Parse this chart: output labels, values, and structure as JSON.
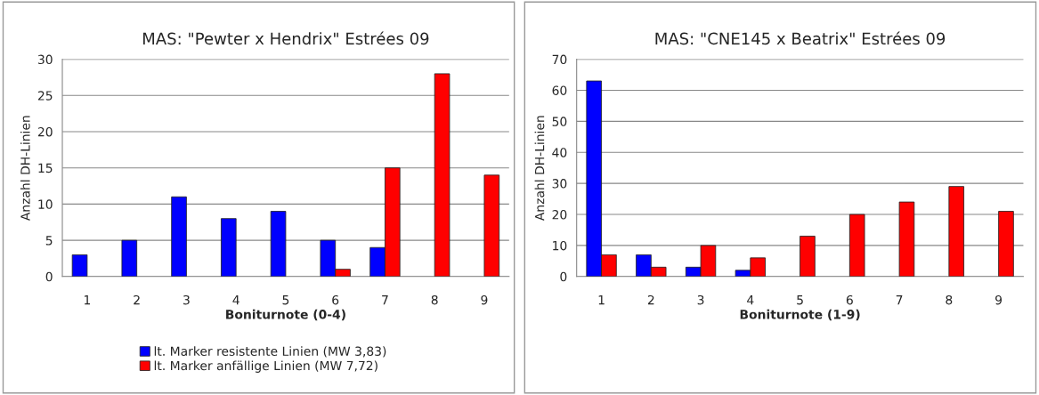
{
  "chart_data": [
    {
      "type": "bar",
      "title": "MAS: \"Pewter x Hendrix\" Estrées 09",
      "xlabel": "Boniturnote (0-4)",
      "ylabel": "Anzahl DH-Linien",
      "categories": [
        "1",
        "2",
        "3",
        "4",
        "5",
        "6",
        "7",
        "8",
        "9"
      ],
      "series": [
        {
          "name": "lt. Marker resistente Linien (MW 3,83)",
          "color": "#0000ff",
          "values": [
            3,
            5,
            11,
            8,
            9,
            5,
            4,
            null,
            null
          ]
        },
        {
          "name": "lt. Marker anfällige Linien (MW 7,72)",
          "color": "#ff0000",
          "values": [
            null,
            null,
            null,
            null,
            null,
            1,
            15,
            28,
            14
          ]
        }
      ],
      "ylim": [
        0,
        30
      ],
      "yticks": [
        0,
        5,
        10,
        15,
        20,
        25,
        30
      ],
      "grid": "y",
      "legend": "bottom"
    },
    {
      "type": "bar",
      "title": "MAS: \"CNE145 x Beatrix\" Estrées 09",
      "xlabel": "Boniturnote (1-9)",
      "ylabel": "Anzahl DH-Linien",
      "categories": [
        "1",
        "2",
        "3",
        "4",
        "5",
        "6",
        "7",
        "8",
        "9"
      ],
      "series": [
        {
          "color": "#0000ff",
          "values": [
            63,
            7,
            3,
            2,
            null,
            null,
            null,
            null,
            null
          ]
        },
        {
          "color": "#ff0000",
          "values": [
            7,
            3,
            10,
            6,
            13,
            20,
            24,
            29,
            21
          ]
        }
      ],
      "ylim": [
        0,
        70
      ],
      "yticks": [
        0,
        10,
        20,
        30,
        40,
        50,
        60,
        70
      ],
      "grid": "y"
    }
  ]
}
